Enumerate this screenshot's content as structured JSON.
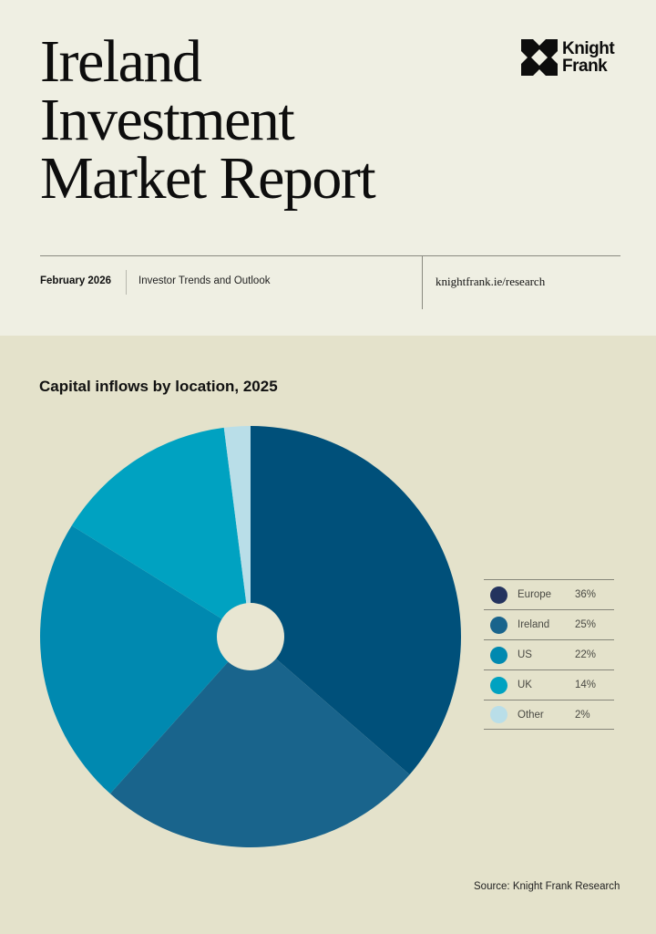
{
  "header": {
    "title_lines": [
      "Ireland",
      "Investment",
      "Market Report"
    ],
    "logo": {
      "icon": "knight-frank-checker-logo-icon",
      "line1": "Knight",
      "line2": "Frank"
    },
    "date": "February 2026",
    "subtitle": "Investor Trends and Outlook",
    "url": "knightfrank.ie/research"
  },
  "colors": {
    "top_background": "#efefe3",
    "bottom_background": "#e4e2cb",
    "hole": "#e8e6d2"
  },
  "legend": [
    {
      "label": "Europe",
      "value": "36%",
      "color": "#24335e"
    },
    {
      "label": "Ireland",
      "value": "25%",
      "color": "#19648c"
    },
    {
      "label": "US",
      "value": "22%",
      "color": "#0089b0"
    },
    {
      "label": "UK",
      "value": "14%",
      "color": "#00a2c1"
    },
    {
      "label": "Other",
      "value": "2%",
      "color": "#b9dee8"
    }
  ],
  "source": "Source: Knight Frank Research",
  "chart_data": {
    "type": "pie",
    "title": "Capital inflows by location, 2025",
    "categories": [
      "Europe",
      "Ireland",
      "US",
      "UK",
      "Other"
    ],
    "values": [
      36,
      25,
      22,
      14,
      2
    ],
    "unit": "%",
    "slice_colors": [
      "#00507a",
      "#19648c",
      "#0089b0",
      "#00a2c1",
      "#b9dee8"
    ],
    "start_angle": "12 o'clock, clockwise",
    "donut_hole": true,
    "legend_position": "right",
    "source": "Knight Frank Research"
  }
}
